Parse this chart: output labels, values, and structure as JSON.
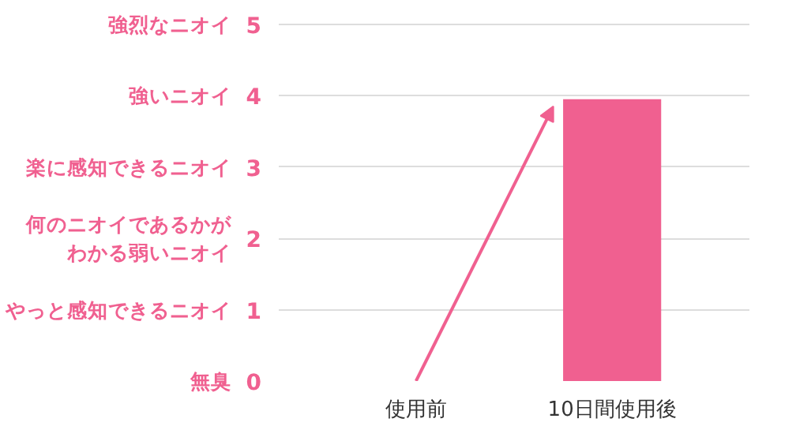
{
  "chart_data": {
    "type": "bar",
    "categories": [
      "使用前",
      "10日間使用後"
    ],
    "values": [
      0,
      3.95
    ],
    "color": "#f06090",
    "ylim": [
      0,
      5.02
    ],
    "yticks": [
      0,
      1,
      2,
      3,
      4,
      5
    ],
    "annotations": [
      "無臭",
      "やっと感知できるニオイ",
      "何のニオイであるかがわかる弱いニオイ",
      "楽に感知できるニオイ",
      "強いニオイ",
      "強烈なニオイ"
    ],
    "grid": "y"
  }
}
